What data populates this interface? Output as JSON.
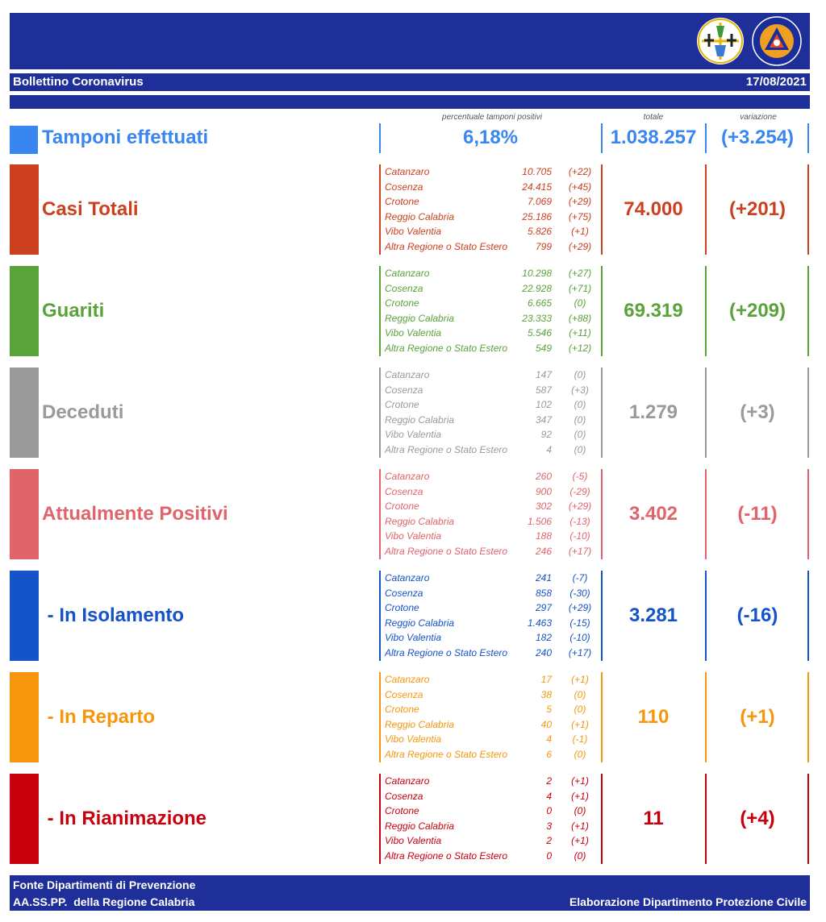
{
  "header": {
    "title": "Bollettino Coronavirus",
    "date": "17/08/2021",
    "logos": [
      "regione-calabria-logo",
      "protezione-civile-logo"
    ]
  },
  "column_headers": {
    "percent_label": "percentuale tamponi positivi",
    "total_label": "totale",
    "variation_label": "variazione"
  },
  "tamponi": {
    "title": "Tamponi effettuati",
    "percent": "6,18%",
    "total": "1.038.257",
    "variation": "(+3.254)",
    "color": "#3a86f0"
  },
  "sections": [
    {
      "id": "casi-totali",
      "title": "Casi Totali",
      "color": "#cc3f1f",
      "total": "74.000",
      "variation": "(+201)",
      "rows": [
        {
          "name": "Catanzaro",
          "value": "10.705",
          "var": "(+22)"
        },
        {
          "name": "Cosenza",
          "value": "24.415",
          "var": "(+45)"
        },
        {
          "name": "Crotone",
          "value": "7.069",
          "var": "(+29)"
        },
        {
          "name": "Reggio Calabria",
          "value": "25.186",
          "var": "(+75)"
        },
        {
          "name": "Vibo Valentia",
          "value": "5.826",
          "var": "(+1)"
        },
        {
          "name": "Altra Regione o Stato Estero",
          "value": "799",
          "var": "(+29)"
        }
      ]
    },
    {
      "id": "guariti",
      "title": "Guariti",
      "color": "#5aa33a",
      "total": "69.319",
      "variation": "(+209)",
      "rows": [
        {
          "name": "Catanzaro",
          "value": "10.298",
          "var": "(+27)"
        },
        {
          "name": "Cosenza",
          "value": "22.928",
          "var": "(+71)"
        },
        {
          "name": "Crotone",
          "value": "6.665",
          "var": "(0)"
        },
        {
          "name": "Reggio Calabria",
          "value": "23.333",
          "var": "(+88)"
        },
        {
          "name": "Vibo Valentia",
          "value": "5.546",
          "var": "(+11)"
        },
        {
          "name": "Altra Regione o Stato Estero",
          "value": "549",
          "var": "(+12)"
        }
      ]
    },
    {
      "id": "deceduti",
      "title": "Deceduti",
      "color": "#9a9a9a",
      "total": "1.279",
      "variation": "(+3)",
      "rows": [
        {
          "name": "Catanzaro",
          "value": "147",
          "var": "(0)"
        },
        {
          "name": "Cosenza",
          "value": "587",
          "var": "(+3)"
        },
        {
          "name": "Crotone",
          "value": "102",
          "var": "(0)"
        },
        {
          "name": "Reggio Calabria",
          "value": "347",
          "var": "(0)"
        },
        {
          "name": "Vibo Valentia",
          "value": "92",
          "var": "(0)"
        },
        {
          "name": "Altra Regione o Stato Estero",
          "value": "4",
          "var": "(0)"
        }
      ]
    },
    {
      "id": "attualmente-positivi",
      "title": "Attualmente Positivi",
      "color": "#e0646a",
      "total": "3.402",
      "variation": "(-11)",
      "rows": [
        {
          "name": "Catanzaro",
          "value": "260",
          "var": "(-5)"
        },
        {
          "name": "Cosenza",
          "value": "900",
          "var": "(-29)"
        },
        {
          "name": "Crotone",
          "value": "302",
          "var": "(+29)"
        },
        {
          "name": "Reggio Calabria",
          "value": "1.506",
          "var": "(-13)"
        },
        {
          "name": "Vibo Valentia",
          "value": "188",
          "var": "(-10)"
        },
        {
          "name": "Altra Regione o Stato Estero",
          "value": "246",
          "var": "(+17)"
        }
      ]
    },
    {
      "id": "in-isolamento",
      "title": " - In Isolamento",
      "color": "#1553c8",
      "total": "3.281",
      "variation": "(-16)",
      "rows": [
        {
          "name": "Catanzaro",
          "value": "241",
          "var": "(-7)"
        },
        {
          "name": "Cosenza",
          "value": "858",
          "var": "(-30)"
        },
        {
          "name": "Crotone",
          "value": "297",
          "var": "(+29)"
        },
        {
          "name": "Reggio Calabria",
          "value": "1.463",
          "var": "(-15)"
        },
        {
          "name": "Vibo Valentia",
          "value": "182",
          "var": "(-10)"
        },
        {
          "name": "Altra Regione o Stato Estero",
          "value": "240",
          "var": "(+17)"
        }
      ]
    },
    {
      "id": "in-reparto",
      "title": " - In Reparto",
      "color": "#f6960d",
      "total": "110",
      "variation": "(+1)",
      "rows": [
        {
          "name": "Catanzaro",
          "value": "17",
          "var": "(+1)"
        },
        {
          "name": "Cosenza",
          "value": "38",
          "var": "(0)"
        },
        {
          "name": "Crotone",
          "value": "5",
          "var": "(0)"
        },
        {
          "name": "Reggio Calabria",
          "value": "40",
          "var": "(+1)"
        },
        {
          "name": "Vibo Valentia",
          "value": "4",
          "var": "(-1)"
        },
        {
          "name": "Altra Regione o Stato Estero",
          "value": "6",
          "var": "(0)"
        }
      ]
    },
    {
      "id": "in-rianimazione",
      "title": " - In Rianimazione",
      "color": "#c8000e",
      "total": "11",
      "variation": "(+4)",
      "rows": [
        {
          "name": "Catanzaro",
          "value": "2",
          "var": "(+1)"
        },
        {
          "name": "Cosenza",
          "value": "4",
          "var": "(+1)"
        },
        {
          "name": "Crotone",
          "value": "0",
          "var": "(0)"
        },
        {
          "name": "Reggio Calabria",
          "value": "3",
          "var": "(+1)"
        },
        {
          "name": "Vibo Valentia",
          "value": "2",
          "var": "(+1)"
        },
        {
          "name": "Altra Regione o Stato Estero",
          "value": "0",
          "var": "(0)"
        }
      ]
    }
  ],
  "footer": {
    "source_line1": "Fonte Dipartimenti di Prevenzione",
    "source_line2": "AA.SS.PP.  della Regione Calabria",
    "credit": "Elaborazione Dipartimento Protezione Civile"
  }
}
